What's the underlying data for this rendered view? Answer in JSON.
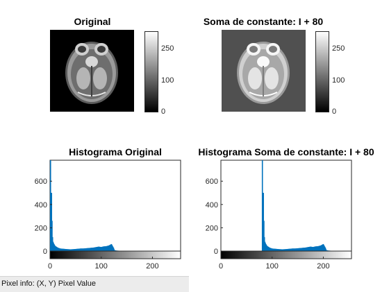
{
  "panels": {
    "original_title": "Original",
    "shifted_title": "Soma de constante: I + 80",
    "hist_original_title": "Histograma Original",
    "hist_shifted_title": "Histograma Soma de constante: I + 80"
  },
  "colorbars": {
    "ticks": [
      "250",
      "100",
      "0"
    ]
  },
  "status": {
    "pixel_info": "Pixel info: (X, Y)  Pixel Value"
  },
  "colors": {
    "histogram_bar": "#0072bd",
    "axes": "#262626"
  },
  "chart_data": [
    {
      "type": "bar",
      "title": "Histograma Original",
      "xlabel": "",
      "ylabel": "",
      "xlim": [
        0,
        255
      ],
      "ylim": [
        0,
        780
      ],
      "xticks": [
        0,
        100,
        200
      ],
      "yticks": [
        0,
        200,
        400,
        600
      ],
      "x": [
        1,
        2,
        3,
        4,
        5,
        6,
        8,
        10,
        15,
        20,
        25,
        30,
        35,
        40,
        45,
        50,
        55,
        60,
        65,
        70,
        75,
        80,
        85,
        90,
        95,
        100,
        105,
        110,
        115,
        118,
        120,
        122,
        124,
        126,
        130,
        140,
        160,
        200,
        250
      ],
      "values": [
        780,
        180,
        500,
        260,
        120,
        80,
        60,
        45,
        30,
        22,
        20,
        18,
        16,
        15,
        16,
        18,
        20,
        22,
        22,
        24,
        26,
        28,
        30,
        34,
        38,
        35,
        40,
        42,
        48,
        55,
        60,
        45,
        30,
        8,
        4,
        2,
        0,
        0,
        0
      ]
    },
    {
      "type": "bar",
      "title": "Histograma Soma de constante: I + 80",
      "xlabel": "",
      "ylabel": "",
      "xlim": [
        0,
        255
      ],
      "ylim": [
        0,
        780
      ],
      "xticks": [
        0,
        100,
        200
      ],
      "yticks": [
        0,
        200,
        400,
        600
      ],
      "x": [
        81,
        82,
        83,
        84,
        85,
        86,
        88,
        90,
        95,
        100,
        105,
        110,
        115,
        120,
        125,
        130,
        135,
        140,
        145,
        150,
        155,
        160,
        165,
        170,
        175,
        180,
        185,
        190,
        195,
        198,
        200,
        202,
        204,
        206,
        210,
        220,
        240
      ],
      "values": [
        780,
        180,
        500,
        260,
        120,
        80,
        60,
        45,
        30,
        22,
        20,
        18,
        16,
        15,
        16,
        18,
        20,
        22,
        22,
        24,
        26,
        28,
        30,
        34,
        38,
        35,
        40,
        42,
        48,
        55,
        60,
        45,
        30,
        8,
        4,
        2,
        0
      ]
    }
  ]
}
